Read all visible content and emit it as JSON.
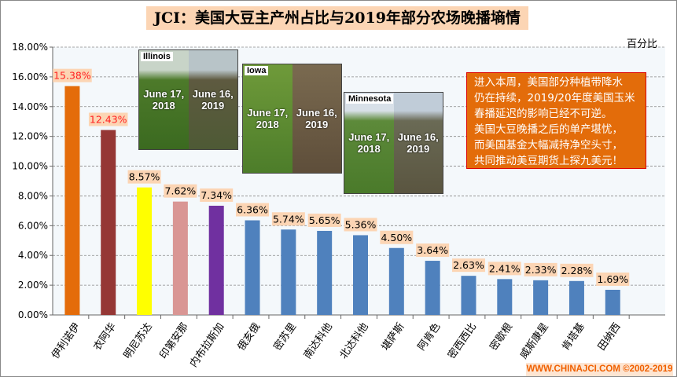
{
  "title": "JCI：美国大豆主产州占比与2019年部分农场晚播墒情",
  "unit": "百分比",
  "note_lines": [
    "进入本周，美国部分种植带降水",
    "仍在持续，2019/20年度美国玉米",
    "春播延迟的影响已经不可逆。",
    "美国大豆晚播之后的单产堪忧，",
    "而美国基金大幅减持净空头寸，",
    "共同推动美豆期货上探九美元！"
  ],
  "photos": [
    {
      "state": "Illinois",
      "left": "June 17, 2018",
      "right": "June 16, 2019"
    },
    {
      "state": "Iowa",
      "left": "June 17, 2018",
      "right": "June 16, 2019"
    },
    {
      "state": "Minnesota",
      "left": "June 17, 2018",
      "right": "June 16, 2019"
    }
  ],
  "footer": "WWW.CHINAJCI.COM ©2002-2019",
  "chart_data": {
    "type": "bar",
    "title": "JCI：美国大豆主产州占比与2019年部分农场晚播墒情",
    "ylabel": "百分比",
    "ylim": [
      0,
      18
    ],
    "yticks": [
      "0.00%",
      "2.00%",
      "4.00%",
      "6.00%",
      "8.00%",
      "10.00%",
      "12.00%",
      "14.00%",
      "16.00%",
      "18.00%"
    ],
    "grid": true,
    "categories": [
      "伊利诺伊",
      "衣阿华",
      "明尼苏达",
      "印第安那",
      "内布拉斯加",
      "俄亥俄",
      "密苏里",
      "南达科他",
      "北达科他",
      "堪萨斯",
      "阿肯色",
      "密西西比",
      "密歇根",
      "威斯康星",
      "肯塔基",
      "田纳西"
    ],
    "values": [
      15.38,
      12.43,
      8.57,
      7.62,
      7.34,
      6.36,
      5.74,
      5.65,
      5.36,
      4.5,
      3.64,
      2.63,
      2.41,
      2.33,
      2.28,
      1.69
    ],
    "labels": [
      "15.38%",
      "12.43%",
      "8.57%",
      "7.62%",
      "7.34%",
      "6.36%",
      "5.74%",
      "5.65%",
      "5.36%",
      "4.50%",
      "3.64%",
      "2.63%",
      "2.41%",
      "2.33%",
      "2.28%",
      "1.69%"
    ],
    "colors": [
      "#e46c0a",
      "#953735",
      "#ffff00",
      "#d99694",
      "#7030a0",
      "#4f81bd",
      "#4f81bd",
      "#4f81bd",
      "#4f81bd",
      "#4f81bd",
      "#4f81bd",
      "#4f81bd",
      "#4f81bd",
      "#4f81bd",
      "#4f81bd",
      "#4f81bd"
    ]
  }
}
